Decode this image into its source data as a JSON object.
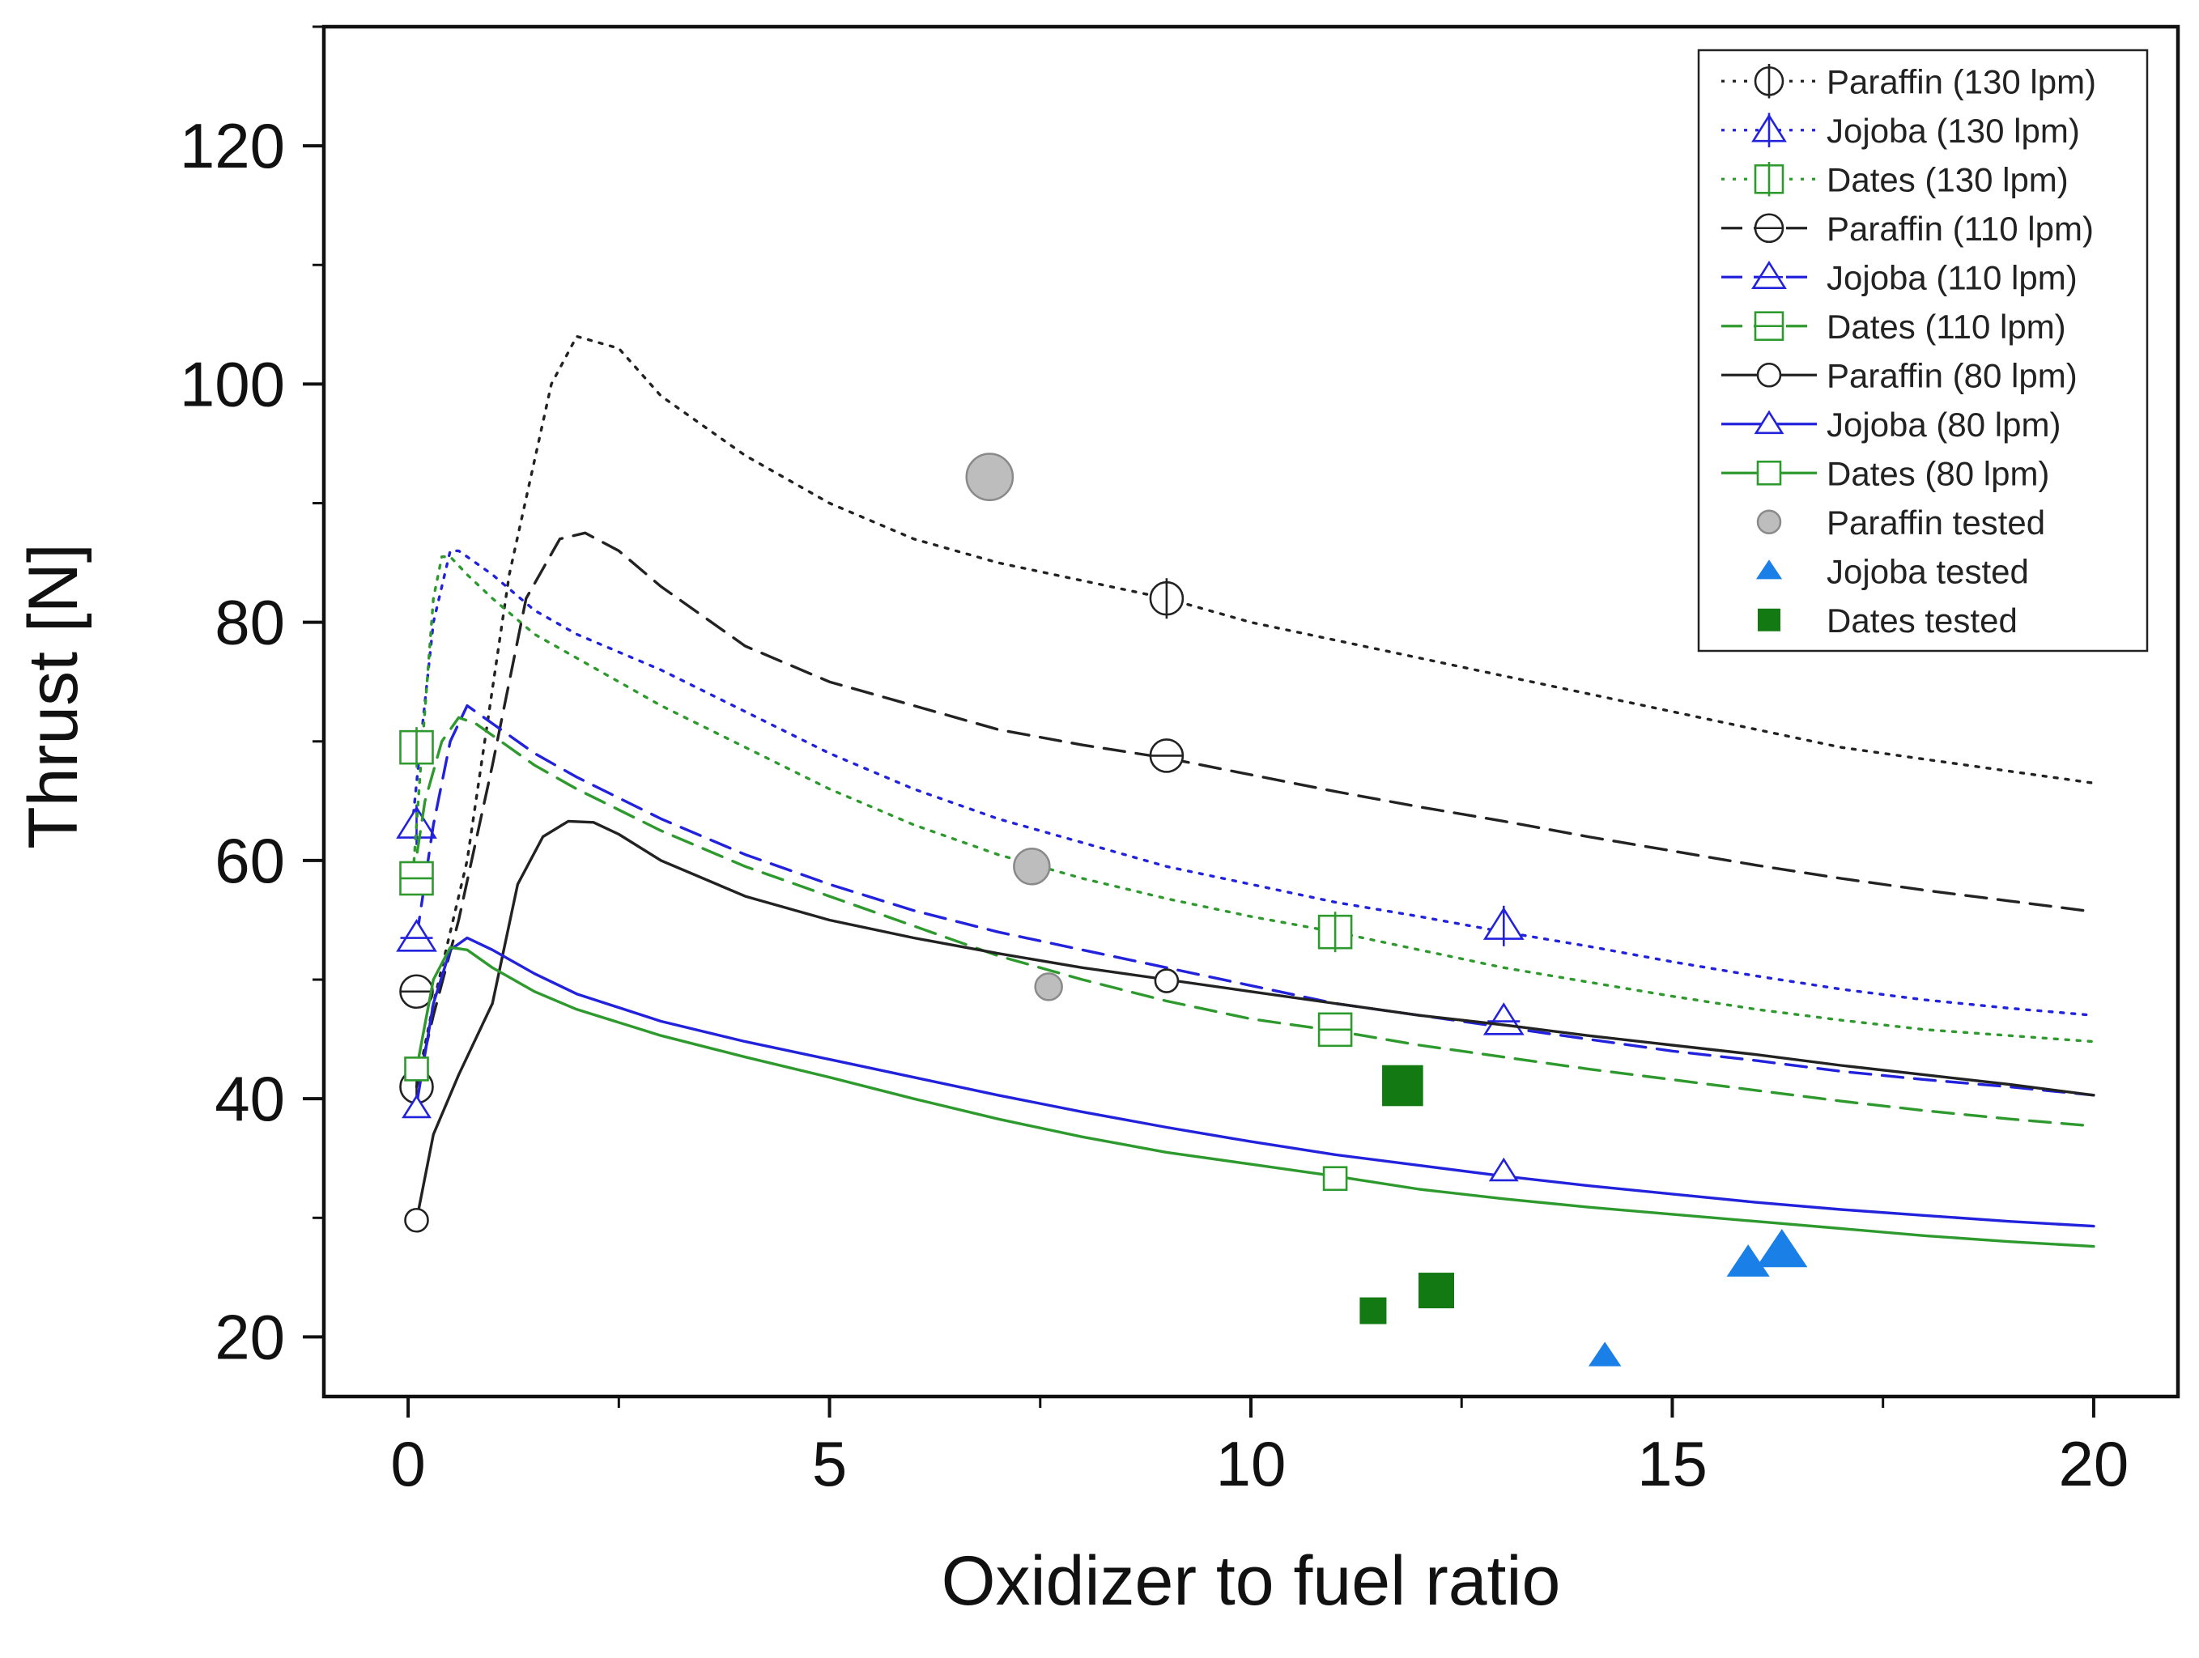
{
  "chart_data": {
    "type": "line",
    "xlabel": "Oxidizer to fuel ratio",
    "ylabel": "Thrust [N]",
    "xlim": [
      -1,
      21
    ],
    "ylim": [
      15,
      130
    ],
    "xticks": [
      0,
      5,
      10,
      15,
      20
    ],
    "yticks": [
      20,
      40,
      60,
      80,
      100,
      120
    ],
    "x_tick_labels": [
      "0",
      "5",
      "10",
      "15",
      "20"
    ],
    "y_tick_labels": [
      "20",
      "40",
      "60",
      "80",
      "100",
      "120"
    ],
    "legend_position": "top-right",
    "colors": {
      "paraffin": "#222222",
      "jojoba": "#2222dd",
      "dates": "#2e9a2e",
      "jojoba_tested": "#1a7fe6",
      "dates_tested": "#137a13",
      "paraffin_tested": "#bdbdbd"
    },
    "series": [
      {
        "name": "Paraffin (130 lpm)",
        "fuel": "paraffin",
        "dash": "dot",
        "marker": "circle-plus",
        "x": [
          0.1,
          0.3,
          0.7,
          1.2,
          1.7,
          2.0,
          2.5,
          3,
          4,
          5,
          6,
          7,
          8,
          9,
          10,
          11,
          12,
          13,
          14,
          15,
          16,
          17,
          18,
          19,
          20
        ],
        "y": [
          41,
          48,
          60,
          84,
          100,
          104,
          103,
          99,
          94,
          90,
          87,
          85,
          83.5,
          82,
          80,
          78.5,
          77,
          75.5,
          74,
          72.5,
          71,
          69.5,
          68.5,
          67.5,
          66.5
        ],
        "markers_x": [
          0.1,
          9
        ],
        "markers_y": [
          41,
          82
        ]
      },
      {
        "name": "Jojoba (130 lpm)",
        "fuel": "jojoba",
        "dash": "dot",
        "marker": "triangle-plus",
        "x": [
          0.05,
          0.15,
          0.3,
          0.5,
          0.6,
          0.7,
          1.0,
          1.5,
          2,
          3,
          4,
          5,
          6,
          7,
          8,
          9,
          10,
          11,
          12,
          13,
          14,
          15,
          16,
          17,
          18,
          19,
          20
        ],
        "y": [
          63,
          70,
          80,
          86,
          86,
          85.5,
          84,
          81,
          79,
          76,
          72.5,
          69,
          66,
          63.5,
          61.5,
          59.5,
          58,
          56.5,
          55.3,
          54,
          52.8,
          51.5,
          50.3,
          49.2,
          48.3,
          47.6,
          47
        ],
        "markers_x": [
          0.1,
          13
        ],
        "markers_y": [
          63,
          54.5
        ]
      },
      {
        "name": "Dates (130 lpm)",
        "fuel": "dates",
        "dash": "dot",
        "marker": "square-plus",
        "x": [
          0.05,
          0.15,
          0.3,
          0.4,
          0.5,
          0.7,
          1.0,
          1.5,
          2,
          3,
          4,
          5,
          6,
          7,
          8,
          9,
          10,
          11,
          12,
          13,
          14,
          15,
          16,
          17,
          18,
          19,
          20
        ],
        "y": [
          58,
          68,
          82,
          85.5,
          85.5,
          84,
          82,
          79,
          77,
          73,
          69.5,
          66,
          63,
          60.5,
          58.5,
          56.8,
          55.3,
          54,
          52.5,
          51,
          49.8,
          48.6,
          47.5,
          46.6,
          45.8,
          45.3,
          44.8
        ],
        "markers_x": [
          0.1,
          11
        ],
        "markers_y": [
          69.5,
          54
        ]
      },
      {
        "name": "Paraffin (110 lpm)",
        "fuel": "paraffin",
        "dash": "dash",
        "marker": "circle-minus",
        "x": [
          0.1,
          0.3,
          0.6,
          1.0,
          1.4,
          1.8,
          2.1,
          2.5,
          3,
          4,
          5,
          6,
          7,
          8,
          9,
          10,
          11,
          12,
          13,
          14,
          15,
          16,
          17,
          18,
          19,
          20
        ],
        "y": [
          41,
          47,
          55,
          68,
          82,
          87,
          87.5,
          86,
          83,
          78,
          75,
          73,
          71,
          69.7,
          68.6,
          67.2,
          65.8,
          64.5,
          63.3,
          62,
          60.8,
          59.6,
          58.5,
          57.5,
          56.6,
          55.7
        ],
        "markers_x": [
          0.1,
          9
        ],
        "markers_y": [
          49,
          68.8
        ]
      },
      {
        "name": "Jojoba (110 lpm)",
        "fuel": "jojoba",
        "dash": "dash",
        "marker": "triangle-minus",
        "x": [
          0.1,
          0.3,
          0.5,
          0.7,
          1.0,
          1.5,
          2,
          3,
          4,
          5,
          6,
          7,
          8,
          9,
          10,
          11,
          12,
          13,
          14,
          15,
          16,
          17,
          18,
          19,
          20
        ],
        "y": [
          53.5,
          63,
          70,
          73,
          71.5,
          69,
          67,
          63.5,
          60.5,
          58,
          55.8,
          54,
          52.5,
          51,
          49.5,
          48,
          47,
          46,
          45,
          44,
          43.2,
          42.3,
          41.6,
          41,
          40.3
        ],
        "markers_x": [
          0.1,
          13
        ],
        "markers_y": [
          53.5,
          46.5
        ]
      },
      {
        "name": "Dates (110 lpm)",
        "fuel": "dates",
        "dash": "dash",
        "marker": "square-minus",
        "x": [
          0.05,
          0.2,
          0.4,
          0.6,
          0.8,
          1.0,
          1.5,
          2,
          3,
          4,
          5,
          6,
          7,
          8,
          9,
          10,
          11,
          12,
          13,
          14,
          15,
          16,
          17,
          18,
          19,
          20
        ],
        "y": [
          58,
          65,
          70,
          72,
          71.5,
          70.5,
          68,
          66,
          62.5,
          59.5,
          57,
          54.5,
          52,
          50,
          48.2,
          46.7,
          45.7,
          44.5,
          43.5,
          42.5,
          41.6,
          40.7,
          39.8,
          39,
          38.3,
          37.7
        ],
        "markers_x": [
          0.1,
          11
        ],
        "markers_y": [
          58.5,
          45.8
        ]
      },
      {
        "name": "Paraffin (80 lpm)",
        "fuel": "paraffin",
        "dash": "solid",
        "marker": "circle",
        "x": [
          0.1,
          0.3,
          0.6,
          1.0,
          1.3,
          1.6,
          1.9,
          2.2,
          2.5,
          3,
          4,
          5,
          6,
          7,
          8,
          9,
          10,
          11,
          12,
          13,
          14,
          15,
          16,
          17,
          18,
          19,
          20
        ],
        "y": [
          29.8,
          37,
          42,
          48,
          58,
          62,
          63.3,
          63.2,
          62.2,
          60,
          57,
          55,
          53.5,
          52.2,
          51,
          50,
          49,
          48,
          47,
          46.2,
          45.3,
          44.5,
          43.7,
          42.8,
          42,
          41.2,
          40.3
        ],
        "markers_x": [
          0.1,
          9
        ],
        "markers_y": [
          29.8,
          49.9
        ]
      },
      {
        "name": "Jojoba (80 lpm)",
        "fuel": "jojoba",
        "dash": "solid",
        "marker": "triangle",
        "x": [
          0.1,
          0.3,
          0.5,
          0.7,
          1.0,
          1.5,
          2,
          3,
          4,
          5,
          6,
          7,
          8,
          9,
          10,
          11,
          12,
          13,
          14,
          15,
          16,
          17,
          18,
          19,
          20
        ],
        "y": [
          39.5,
          48,
          52.5,
          53.5,
          52.5,
          50.5,
          48.8,
          46.5,
          44.8,
          43.3,
          41.8,
          40.3,
          38.9,
          37.6,
          36.4,
          35.3,
          34.4,
          33.5,
          32.7,
          32,
          31.3,
          30.7,
          30.2,
          29.7,
          29.3
        ],
        "markers_x": [
          0.1,
          13
        ],
        "markers_y": [
          39.2,
          33.9
        ]
      },
      {
        "name": "Dates (80 lpm)",
        "fuel": "dates",
        "dash": "solid",
        "marker": "square",
        "x": [
          0.1,
          0.3,
          0.5,
          0.7,
          1.0,
          1.5,
          2,
          3,
          4,
          5,
          6,
          7,
          8,
          9,
          10,
          11,
          12,
          13,
          14,
          15,
          16,
          17,
          18,
          19,
          20
        ],
        "y": [
          42.5,
          50,
          52.7,
          52.5,
          51,
          49,
          47.5,
          45.3,
          43.5,
          41.8,
          40,
          38.3,
          36.8,
          35.5,
          34.5,
          33.5,
          32.4,
          31.6,
          30.9,
          30.3,
          29.7,
          29.1,
          28.5,
          28,
          27.6
        ],
        "markers_x": [
          0.1,
          11
        ],
        "markers_y": [
          42.5,
          33.3
        ]
      }
    ],
    "tested": [
      {
        "name": "Paraffin tested",
        "fuel": "paraffin",
        "marker": "filled-circle",
        "points": [
          [
            6.9,
            92.2,
            1.3
          ],
          [
            7.4,
            59.5,
            1.0
          ],
          [
            7.6,
            49.4,
            0.75
          ]
        ]
      },
      {
        "name": "Jojoba tested",
        "fuel": "jojoba",
        "marker": "filled-triangle",
        "points": [
          [
            14.2,
            18.4,
            0.8
          ],
          [
            15.9,
            26.2,
            1.05
          ],
          [
            16.3,
            27.2,
            1.25
          ]
        ]
      },
      {
        "name": "Dates tested",
        "fuel": "dates",
        "marker": "filled-square",
        "points": [
          [
            11.8,
            41.1,
            1.15
          ],
          [
            12.2,
            23.9,
            1.0
          ],
          [
            11.45,
            22.2,
            0.75
          ]
        ]
      }
    ]
  }
}
